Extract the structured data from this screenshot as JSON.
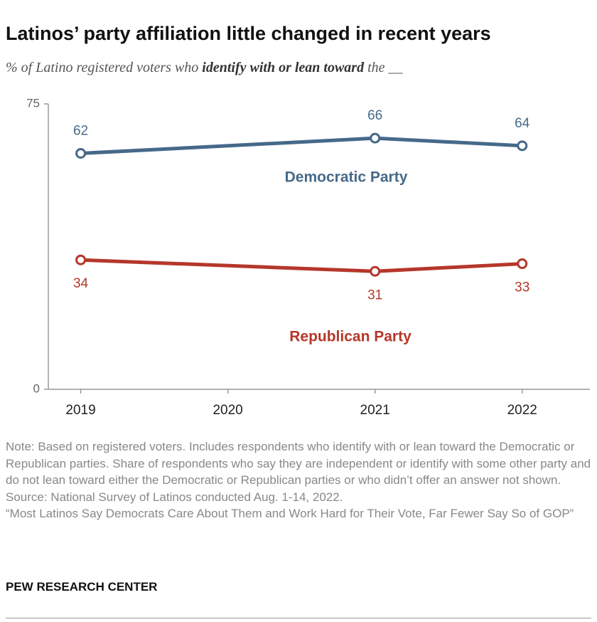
{
  "chart_data": {
    "type": "line",
    "title": "Latinos’ party affiliation little changed in recent years",
    "subtitle": [
      "% of Latino registered voters who ",
      "identify with or lean toward",
      " the __"
    ],
    "x": [
      2019,
      2021,
      2022
    ],
    "xlim": [
      2018.78,
      2022.46
    ],
    "xticks": [
      2019,
      2020,
      2021,
      2022
    ],
    "ylim": [
      0,
      75
    ],
    "yticks": [
      0,
      75
    ],
    "series": [
      {
        "name": "Democratic Party",
        "color": "#46698a",
        "values": [
          62,
          66,
          64
        ]
      },
      {
        "name": "Republican Party",
        "color": "#b5372a",
        "values": [
          34,
          31,
          33
        ]
      }
    ],
    "note": "Note: Based on registered voters. Includes respondents who identify with or lean toward the Democratic or Republican parties. Share of respondents who say they are independent or identify with some other party and do not lean toward either the Democratic or Republican parties or who didn’t offer an answer not shown.",
    "source": "Source: National Survey of Latinos conducted Aug. 1-14, 2022.",
    "report": "“Most Latinos Say Democrats Care About Them and Work Hard for Their Vote, Far Fewer Say So of GOP”",
    "credit": "PEW RESEARCH CENTER"
  }
}
